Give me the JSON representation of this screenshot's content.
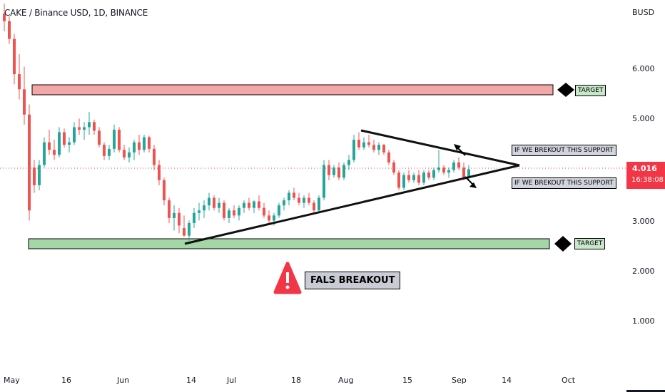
{
  "header": {
    "symbol_line": "CAKE / Binance USD, 1D, BINANCE",
    "currency": "BUSD"
  },
  "last_price": {
    "value": "4.016",
    "countdown": "16:38:08",
    "color": "#f23645"
  },
  "annotations": {
    "target_top": "TARGET",
    "target_bottom": "TARGET",
    "support_note_top": "IF WE BREKOUT THIS SUPPORT",
    "support_note_bottom": "IF WE BREKOUT THIS SUPPORT",
    "false_breakout": "FALS BREAKOUT"
  },
  "colors": {
    "up": "#26a69a",
    "down": "#ef5350",
    "resistance_zone": "#f4a7a7",
    "support_zone": "#a5d6a7",
    "warning": "#f23645"
  },
  "chart_data": {
    "type": "candlestick",
    "title": "CAKE / Binance USD, 1D, BINANCE",
    "y_axis": {
      "ticks": [
        "6.000",
        "5.000",
        "4.000",
        "3.000",
        "2.000",
        "1.000"
      ],
      "ylim": [
        0.2,
        7.3
      ],
      "side": "right"
    },
    "x_axis": {
      "ticks": [
        "May",
        "16",
        "Jun",
        "14",
        "Jul",
        "18",
        "Aug",
        "15",
        "Sep",
        "14",
        "Oct"
      ]
    },
    "grid": false,
    "zones": [
      {
        "name": "resistance",
        "low": 5.45,
        "high": 5.65
      },
      {
        "name": "support",
        "low": 2.47,
        "high": 2.67
      }
    ],
    "trendlines": [
      {
        "name": "descending",
        "from": [
          "Aug 7",
          4.78
        ],
        "to": [
          "Sep 18",
          4.07
        ]
      },
      {
        "name": "ascending",
        "from": [
          "Jun 17",
          2.52
        ],
        "to": [
          "Sep 18",
          4.07
        ]
      }
    ],
    "candles": [
      [
        7.1,
        7.3,
        6.75,
        6.95
      ],
      [
        6.95,
        7.05,
        6.5,
        6.6
      ],
      [
        6.6,
        6.7,
        5.7,
        5.9
      ],
      [
        5.9,
        6.3,
        5.4,
        5.6
      ],
      [
        5.6,
        6.05,
        4.9,
        5.1
      ],
      [
        5.1,
        5.3,
        3.0,
        3.2
      ],
      [
        4.05,
        4.2,
        3.55,
        3.7
      ],
      [
        3.7,
        4.2,
        3.6,
        4.1
      ],
      [
        4.1,
        4.65,
        4.05,
        4.55
      ],
      [
        4.55,
        4.8,
        4.3,
        4.4
      ],
      [
        4.4,
        4.6,
        4.2,
        4.3
      ],
      [
        4.3,
        4.85,
        4.25,
        4.75
      ],
      [
        4.75,
        4.82,
        4.45,
        4.5
      ],
      [
        4.5,
        4.65,
        4.35,
        4.55
      ],
      [
        4.55,
        4.95,
        4.5,
        4.85
      ],
      [
        4.85,
        5.02,
        4.7,
        4.8
      ],
      [
        4.8,
        4.95,
        4.6,
        4.85
      ],
      [
        4.85,
        5.15,
        4.7,
        4.95
      ],
      [
        4.95,
        5.0,
        4.7,
        4.78
      ],
      [
        4.78,
        4.85,
        4.45,
        4.5
      ],
      [
        4.5,
        4.55,
        4.2,
        4.28
      ],
      [
        4.28,
        4.5,
        4.2,
        4.42
      ],
      [
        4.42,
        4.9,
        4.35,
        4.8
      ],
      [
        4.8,
        4.85,
        4.35,
        4.4
      ],
      [
        4.4,
        4.5,
        4.2,
        4.25
      ],
      [
        4.25,
        4.45,
        4.15,
        4.35
      ],
      [
        4.35,
        4.6,
        4.2,
        4.55
      ],
      [
        4.55,
        4.7,
        4.3,
        4.4
      ],
      [
        4.4,
        4.7,
        4.35,
        4.65
      ],
      [
        4.65,
        4.68,
        4.35,
        4.42
      ],
      [
        4.42,
        4.5,
        4.0,
        4.1
      ],
      [
        4.1,
        4.2,
        3.7,
        3.8
      ],
      [
        3.8,
        3.85,
        3.3,
        3.4
      ],
      [
        3.4,
        3.45,
        2.95,
        3.05
      ],
      [
        3.05,
        3.3,
        2.8,
        3.15
      ],
      [
        3.15,
        3.25,
        2.75,
        2.9
      ],
      [
        2.85,
        3.1,
        2.68,
        2.7
      ],
      [
        2.7,
        3.0,
        2.6,
        2.95
      ],
      [
        2.95,
        3.25,
        2.85,
        3.15
      ],
      [
        3.15,
        3.35,
        3.0,
        3.2
      ],
      [
        3.2,
        3.4,
        3.05,
        3.3
      ],
      [
        3.3,
        3.55,
        3.2,
        3.45
      ],
      [
        3.45,
        3.5,
        3.2,
        3.25
      ],
      [
        3.25,
        3.45,
        3.15,
        3.35
      ],
      [
        3.35,
        3.4,
        3.0,
        3.05
      ],
      [
        3.05,
        3.25,
        2.95,
        3.2
      ],
      [
        3.2,
        3.3,
        3.05,
        3.1
      ],
      [
        3.1,
        3.3,
        3.0,
        3.25
      ],
      [
        3.25,
        3.4,
        3.15,
        3.35
      ],
      [
        3.35,
        3.45,
        3.2,
        3.25
      ],
      [
        3.25,
        3.4,
        3.15,
        3.38
      ],
      [
        3.38,
        3.5,
        3.2,
        3.25
      ],
      [
        3.25,
        3.35,
        3.05,
        3.1
      ],
      [
        3.1,
        3.2,
        2.95,
        3.0
      ],
      [
        3.0,
        3.15,
        2.9,
        3.1
      ],
      [
        3.1,
        3.35,
        3.05,
        3.3
      ],
      [
        3.3,
        3.45,
        3.2,
        3.4
      ],
      [
        3.4,
        3.6,
        3.3,
        3.55
      ],
      [
        3.55,
        3.65,
        3.4,
        3.45
      ],
      [
        3.45,
        3.55,
        3.3,
        3.35
      ],
      [
        3.35,
        3.5,
        3.25,
        3.45
      ],
      [
        3.45,
        3.55,
        3.3,
        3.35
      ],
      [
        3.35,
        3.4,
        3.15,
        3.2
      ],
      [
        3.2,
        3.5,
        3.15,
        3.45
      ],
      [
        3.45,
        4.2,
        3.4,
        4.1
      ],
      [
        4.1,
        4.2,
        3.8,
        3.9
      ],
      [
        3.9,
        4.1,
        3.85,
        4.05
      ],
      [
        4.05,
        4.15,
        3.8,
        3.85
      ],
      [
        3.85,
        4.15,
        3.8,
        4.1
      ],
      [
        4.1,
        4.3,
        4.0,
        4.2
      ],
      [
        4.2,
        4.7,
        4.15,
        4.6
      ],
      [
        4.6,
        4.75,
        4.4,
        4.45
      ],
      [
        4.45,
        4.65,
        4.4,
        4.55
      ],
      [
        4.55,
        4.7,
        4.45,
        4.5
      ],
      [
        4.5,
        4.6,
        4.35,
        4.4
      ],
      [
        4.4,
        4.55,
        4.3,
        4.5
      ],
      [
        4.5,
        4.52,
        4.3,
        4.35
      ],
      [
        4.35,
        4.4,
        4.1,
        4.15
      ],
      [
        4.15,
        4.2,
        3.9,
        3.95
      ],
      [
        3.95,
        4.0,
        3.6,
        3.65
      ],
      [
        3.65,
        3.95,
        3.6,
        3.9
      ],
      [
        3.9,
        4.0,
        3.75,
        3.8
      ],
      [
        3.8,
        3.95,
        3.75,
        3.9
      ],
      [
        3.9,
        4.0,
        3.7,
        3.75
      ],
      [
        3.75,
        4.0,
        3.7,
        3.95
      ],
      [
        3.95,
        4.0,
        3.8,
        3.85
      ],
      [
        3.85,
        4.05,
        3.8,
        4.0
      ],
      [
        4.0,
        4.4,
        3.95,
        4.05
      ],
      [
        4.05,
        4.1,
        3.9,
        3.95
      ],
      [
        3.95,
        4.05,
        3.85,
        4.0
      ],
      [
        4.0,
        4.2,
        3.95,
        4.15
      ],
      [
        4.15,
        4.25,
        4.0,
        4.05
      ],
      [
        4.05,
        4.15,
        3.8,
        3.85
      ],
      [
        3.85,
        4.1,
        3.8,
        4.016
      ]
    ]
  }
}
